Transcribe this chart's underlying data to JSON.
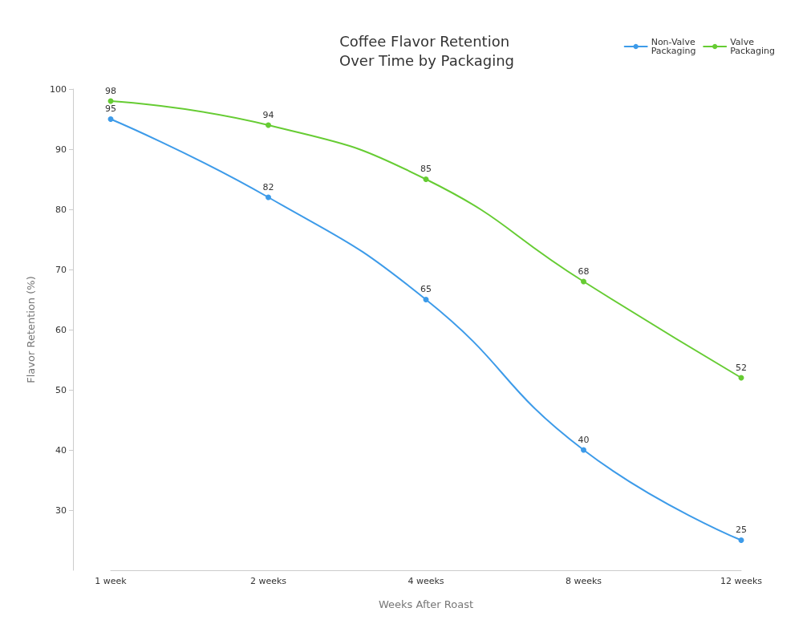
{
  "chart_data": {
    "type": "line",
    "title": "Coffee Flavor Retention Over Time by Packaging",
    "xlabel": "Weeks After Roast",
    "ylabel": "Flavor Retention (%)",
    "categories": [
      "1 week",
      "2 weeks",
      "4 weeks",
      "8 weeks",
      "12 weeks"
    ],
    "series": [
      {
        "name": "Non-Valve Packaging",
        "color": "#3d9be9",
        "values": [
          95,
          82,
          65,
          40,
          25
        ]
      },
      {
        "name": "Valve Packaging",
        "color": "#66cc33",
        "values": [
          98,
          94,
          85,
          68,
          52
        ]
      }
    ],
    "ylim": [
      20,
      100
    ],
    "yticks": [
      30,
      40,
      50,
      60,
      70,
      80,
      90,
      100
    ],
    "grid": false,
    "legend": "top right",
    "marker": "circle",
    "line_style": "solid",
    "data_labels": true
  }
}
